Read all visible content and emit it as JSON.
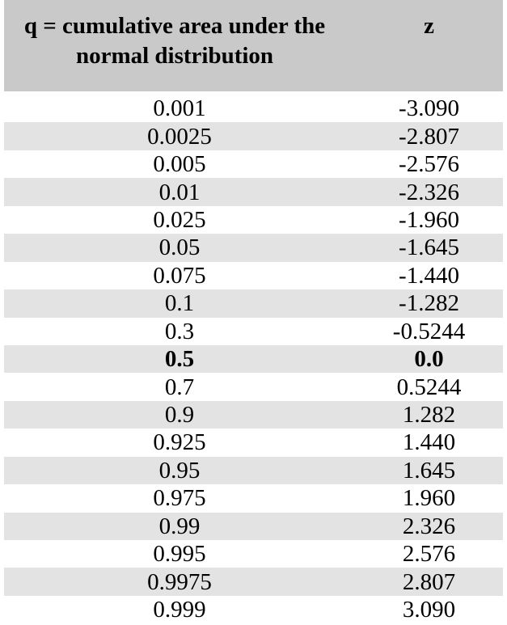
{
  "header": {
    "q_label": "q = cumulative area under the normal distribution",
    "z_label": "z"
  },
  "rows": [
    {
      "q": "0.001",
      "z": "-3.090"
    },
    {
      "q": "0.0025",
      "z": "-2.807"
    },
    {
      "q": "0.005",
      "z": "-2.576"
    },
    {
      "q": "0.01",
      "z": "-2.326"
    },
    {
      "q": "0.025",
      "z": "-1.960"
    },
    {
      "q": "0.05",
      "z": "-1.645"
    },
    {
      "q": "0.075",
      "z": "-1.440"
    },
    {
      "q": "0.1",
      "z": "-1.282"
    },
    {
      "q": "0.3",
      "z": "-0.5244"
    },
    {
      "q": "0.5",
      "z": "0.0",
      "bold": true
    },
    {
      "q": "0.7",
      "z": "0.5244"
    },
    {
      "q": "0.9",
      "z": "1.282"
    },
    {
      "q": "0.925",
      "z": "1.440"
    },
    {
      "q": "0.95",
      "z": "1.645"
    },
    {
      "q": "0.975",
      "z": "1.960"
    },
    {
      "q": "0.99",
      "z": "2.326"
    },
    {
      "q": "0.995",
      "z": "2.576"
    },
    {
      "q": "0.9975",
      "z": "2.807"
    },
    {
      "q": "0.999",
      "z": "3.090"
    }
  ],
  "colors": {
    "header_bg": "#c9c9c9",
    "stripe_bg": "#e3e3e3",
    "row_bg": "#ffffff",
    "text": "#000000"
  }
}
